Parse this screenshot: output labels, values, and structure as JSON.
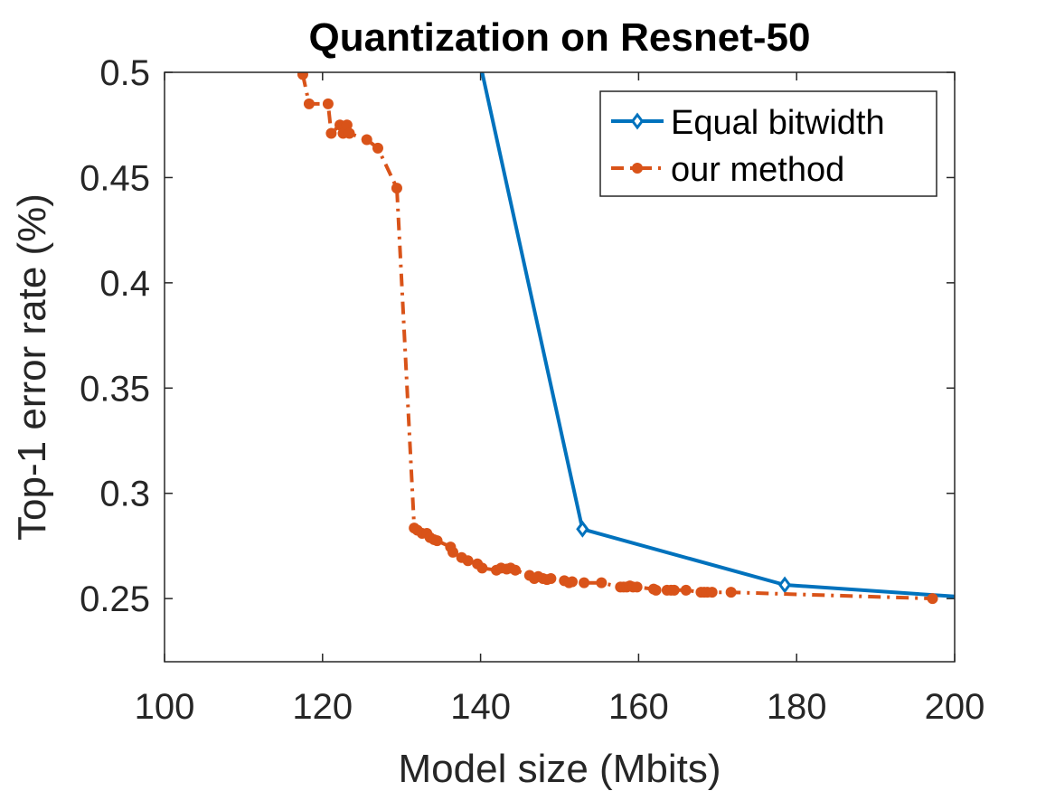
{
  "chart_data": {
    "type": "line",
    "title": "Quantization on Resnet-50",
    "xlabel": "Model size (Mbits)",
    "ylabel": "Top-1 error rate (%)",
    "xlim": [
      100,
      200
    ],
    "ylim": [
      0.22,
      0.5
    ],
    "xticks": [
      100,
      120,
      140,
      160,
      180,
      200
    ],
    "xtick_labels": [
      "100",
      "120",
      "140",
      "160",
      "180",
      "200"
    ],
    "yticks": [
      0.25,
      0.3,
      0.35,
      0.4,
      0.45,
      0.5
    ],
    "ytick_labels": [
      "0.25",
      "0.3",
      "0.35",
      "0.4",
      "0.45",
      "0.5"
    ],
    "grid": false,
    "legend_position": "top-right",
    "series": [
      {
        "name": "Equal bitwidth",
        "color": "#0072bd",
        "line_style": "solid",
        "marker": "diamond",
        "x": [
          140.2,
          152.9,
          178.5,
          200
        ],
        "y": [
          0.5,
          0.283,
          0.2565,
          0.251
        ],
        "marker_x": [
          152.9,
          178.5
        ],
        "marker_y": [
          0.283,
          0.2565
        ]
      },
      {
        "name": "our method",
        "color": "#d95319",
        "line_style": "dashdot",
        "marker": "circle",
        "x": [
          117.5,
          118.3,
          120.7,
          121.1,
          122.2,
          122.6,
          123.1,
          123.4,
          125.6,
          127.0,
          129.4,
          131.6,
          132.0,
          132.6,
          133.2,
          133.6,
          134.1,
          134.5,
          136.2,
          136.5,
          137.6,
          138.4,
          139.6,
          140.2,
          142.0,
          142.6,
          143.3,
          143.8,
          144.4,
          146.2,
          146.8,
          147.3,
          147.9,
          148.4,
          148.9,
          150.6,
          151.2,
          151.6,
          153.1,
          155.3,
          157.7,
          158.1,
          158.5,
          158.9,
          159.3,
          159.8,
          161.9,
          162.2,
          163.6,
          164.1,
          164.5,
          166.0,
          167.9,
          168.3,
          168.7,
          169.3,
          171.7,
          197.2
        ],
        "y": [
          0.499,
          0.485,
          0.485,
          0.471,
          0.475,
          0.471,
          0.475,
          0.471,
          0.468,
          0.464,
          0.445,
          0.2835,
          0.2825,
          0.281,
          0.281,
          0.279,
          0.278,
          0.2775,
          0.2745,
          0.272,
          0.2695,
          0.268,
          0.2665,
          0.2645,
          0.2635,
          0.2645,
          0.264,
          0.2645,
          0.2635,
          0.261,
          0.2595,
          0.2605,
          0.2595,
          0.259,
          0.2595,
          0.2585,
          0.2575,
          0.258,
          0.2575,
          0.2575,
          0.2555,
          0.2555,
          0.2555,
          0.256,
          0.2555,
          0.2555,
          0.2545,
          0.254,
          0.254,
          0.254,
          0.254,
          0.254,
          0.253,
          0.253,
          0.253,
          0.253,
          0.253,
          0.25
        ]
      }
    ]
  }
}
